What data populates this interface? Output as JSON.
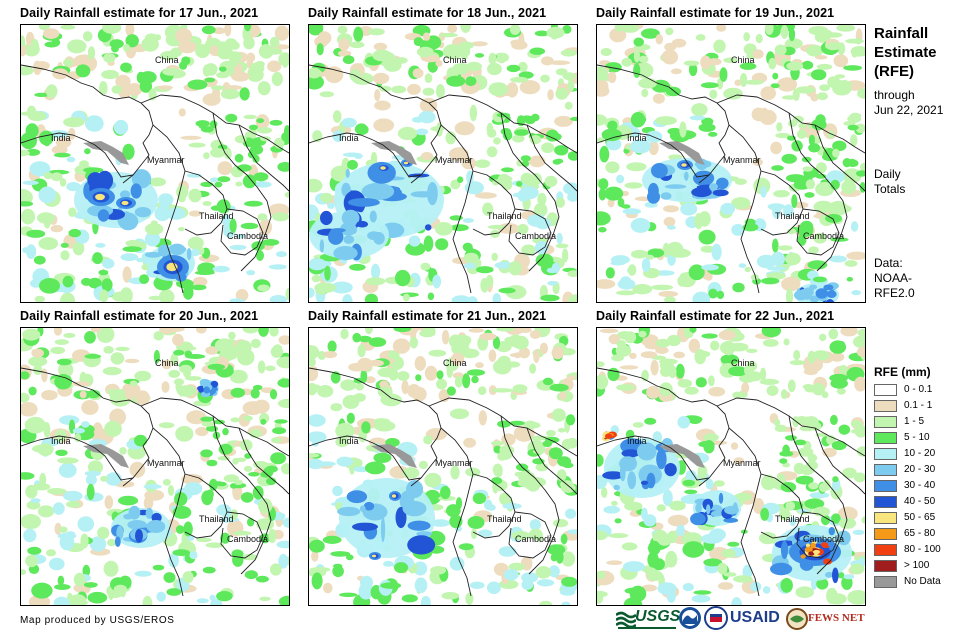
{
  "panels": [
    {
      "title": "Daily Rainfall estimate for 17 Jun., 2021"
    },
    {
      "title": "Daily Rainfall estimate for 18 Jun., 2021"
    },
    {
      "title": "Daily Rainfall estimate for 19 Jun., 2021"
    },
    {
      "title": "Daily Rainfall estimate for 20 Jun., 2021"
    },
    {
      "title": "Daily Rainfall estimate for 21 Jun., 2021"
    },
    {
      "title": "Daily Rainfall estimate for 22 Jun., 2021"
    }
  ],
  "map_labels": {
    "china": "China",
    "india": "India",
    "myanmar": "Myanmar",
    "thailand": "Thailand",
    "cambodia": "Cambodia"
  },
  "side": {
    "title_line1": "Rainfall",
    "title_line2": "Estimate",
    "title_line3": "(RFE)",
    "through": "through",
    "through_date": "Jun 22, 2021",
    "daily": "Daily",
    "totals": "Totals",
    "data_label": "Data:",
    "data_source1": "NOAA-",
    "data_source2": "RFE2.0"
  },
  "legend": {
    "title": "RFE (mm)",
    "items": [
      {
        "label": "0 - 0.1",
        "color": "#ffffff"
      },
      {
        "label": "0.1 - 1",
        "color": "#eedcbf"
      },
      {
        "label": "1 - 5",
        "color": "#c2f5b0"
      },
      {
        "label": "5 - 10",
        "color": "#5ee85c"
      },
      {
        "label": "10 - 20",
        "color": "#b5f0f5"
      },
      {
        "label": "20 - 30",
        "color": "#7ecbf0"
      },
      {
        "label": "30 - 40",
        "color": "#3f8fe6"
      },
      {
        "label": "40 - 50",
        "color": "#2255d6"
      },
      {
        "label": "50 - 65",
        "color": "#f8e57d"
      },
      {
        "label": "65 - 80",
        "color": "#f59a18"
      },
      {
        "label": "80 - 100",
        "color": "#f23f11"
      },
      {
        "label": "> 100",
        "color": "#a11c1c"
      },
      {
        "label": "No Data",
        "color": "#999999"
      }
    ]
  },
  "credit": "Map produced by USGS/EROS",
  "logos": {
    "usgs": "USGS",
    "usaid": "USAID",
    "fewsnet": "FEWS NET"
  }
}
